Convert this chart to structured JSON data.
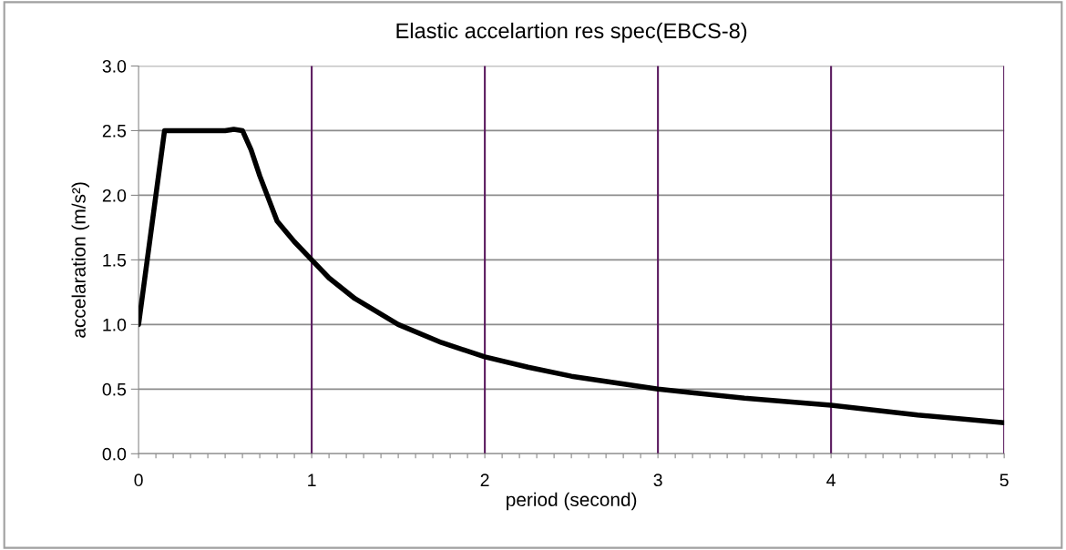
{
  "chart_data": {
    "type": "line",
    "title": "Elastic accelartion res spec(EBCS-8)",
    "xlabel": "period (second)",
    "ylabel": "accelaration (m/s²)",
    "x": [
      0,
      0.15,
      0.2,
      0.5,
      0.55,
      0.6,
      0.65,
      0.7,
      0.8,
      0.9,
      1,
      1.1,
      1.25,
      1.5,
      1.75,
      2,
      2.25,
      2.5,
      2.75,
      3,
      3.5,
      4,
      4.5,
      5
    ],
    "series": [
      {
        "color": "#000000",
        "values": [
          1.0,
          2.5,
          2.5,
          2.5,
          2.51,
          2.5,
          2.35,
          2.15,
          1.8,
          1.64,
          1.5,
          1.36,
          1.2,
          1.0,
          0.86,
          0.75,
          0.67,
          0.6,
          0.55,
          0.5,
          0.43,
          0.375,
          0.3,
          0.24
        ]
      }
    ],
    "xlim": [
      0,
      5
    ],
    "ylim": [
      0,
      3
    ],
    "xticks": [
      0,
      1,
      2,
      3,
      4,
      5,
      {
        "value": 0.1,
        "label": null
      },
      {
        "value": 0.2,
        "label": null
      },
      {
        "value": 0.3,
        "label": null
      },
      {
        "value": 0.4,
        "label": null
      },
      {
        "value": 0.5,
        "label": null
      },
      {
        "value": 0.6,
        "label": null
      },
      {
        "value": 0.7,
        "label": null
      },
      {
        "value": 0.8,
        "label": null
      },
      {
        "value": 0.9,
        "label": null
      },
      {
        "value": 1.1,
        "label": null
      },
      {
        "value": 1.2,
        "label": null
      },
      {
        "value": 1.3,
        "label": null
      },
      {
        "value": 1.4,
        "label": null
      },
      {
        "value": 1.5,
        "label": null
      },
      {
        "value": 1.6,
        "label": null
      },
      {
        "value": 1.7,
        "label": null
      },
      {
        "value": 1.8,
        "label": null
      },
      {
        "value": 1.9,
        "label": null
      },
      {
        "value": 2.1,
        "label": null
      },
      {
        "value": 2.2,
        "label": null
      },
      {
        "value": 2.3,
        "label": null
      },
      {
        "value": 2.4,
        "label": null
      },
      {
        "value": 2.5,
        "label": null
      },
      {
        "value": 2.6,
        "label": null
      },
      {
        "value": 2.7,
        "label": null
      },
      {
        "value": 2.8,
        "label": null
      },
      {
        "value": 2.9,
        "label": null
      },
      {
        "value": 3.1,
        "label": null
      },
      {
        "value": 3.2,
        "label": null
      },
      {
        "value": 3.3,
        "label": null
      },
      {
        "value": 3.4,
        "label": null
      },
      {
        "value": 3.5,
        "label": null
      },
      {
        "value": 3.6,
        "label": null
      },
      {
        "value": 3.7,
        "label": null
      },
      {
        "value": 3.8,
        "label": null
      },
      {
        "value": 3.9,
        "label": null
      },
      {
        "value": 4.1,
        "label": null
      },
      {
        "value": 4.2,
        "label": null
      },
      {
        "value": 4.3,
        "label": null
      },
      {
        "value": 4.4,
        "label": null
      },
      {
        "value": 4.5,
        "label": null
      },
      {
        "value": 4.6,
        "label": null
      },
      {
        "value": 4.7,
        "label": null
      },
      {
        "value": 4.8,
        "label": null
      },
      {
        "value": 4.9,
        "label": null
      }
    ],
    "yticks": [
      {
        "value": 0,
        "label": "0.0"
      },
      {
        "value": 0.5,
        "label": "0.5"
      },
      {
        "value": 1,
        "label": "1.0"
      },
      {
        "value": 1.5,
        "label": "1.5"
      },
      {
        "value": 2,
        "label": "2.0"
      },
      {
        "value": 2.5,
        "label": "2.5"
      },
      {
        "value": 3,
        "label": "3.0"
      }
    ],
    "grid": true,
    "marker": "none",
    "line_style": "solid",
    "legend": false
  }
}
